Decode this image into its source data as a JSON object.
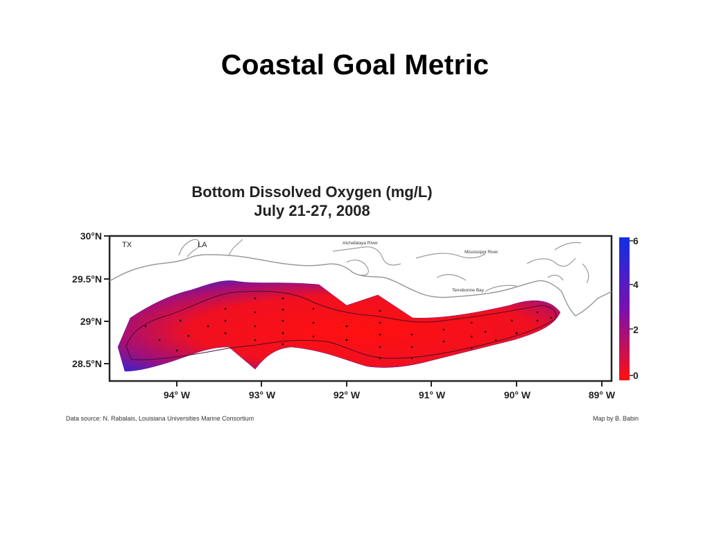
{
  "slide": {
    "title": "Coastal Goal Metric"
  },
  "map": {
    "title_line1": "Bottom Dissolved Oxygen (mg/L)",
    "title_line2": "July 21-27, 2008",
    "lat_labels": [
      "30°N",
      "29.5°N",
      "29°N",
      "28.5°N"
    ],
    "lon_labels": [
      "94° W",
      "93° W",
      "92° W",
      "91° W",
      "90° W",
      "89° W"
    ],
    "places": {
      "tx": "TX",
      "la": "LA",
      "atchafalaya": "Atchafalaya River",
      "mississippi": "Mississippi River",
      "terrebonne": "Terrebonne Bay"
    },
    "colorbar": {
      "labels": [
        "6",
        "4",
        "2",
        "0"
      ],
      "colors": {
        "high": "#1030e6",
        "mid": "#7a10b0",
        "low": "#ff1010"
      }
    },
    "source": "Data source: N. Rabalais, Louisiana Universities Marine Consortium",
    "credit": "Map by B. Babin"
  }
}
